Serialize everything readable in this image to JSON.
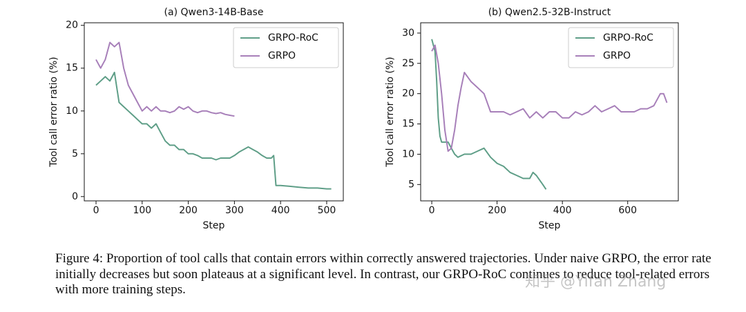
{
  "chart_data": [
    {
      "type": "line",
      "title": "(a) Qwen3-14B-Base",
      "x_label": "Step",
      "y_label": "Tool call error ratio (%)",
      "xlim": [
        -25.5,
        536
      ],
      "ylim": [
        -0.5,
        20.3
      ],
      "xticks": [
        0,
        100,
        200,
        300,
        400,
        500
      ],
      "yticks": [
        0,
        5,
        10,
        15,
        20
      ],
      "legend": "upper right",
      "series": [
        {
          "name": "GRPO-RoC",
          "color": "#5e9e87",
          "x": [
            0,
            10,
            20,
            30,
            40,
            50,
            60,
            70,
            80,
            90,
            100,
            110,
            120,
            130,
            140,
            150,
            160,
            170,
            180,
            190,
            200,
            210,
            220,
            230,
            240,
            250,
            260,
            270,
            280,
            290,
            300,
            310,
            320,
            330,
            340,
            350,
            360,
            370,
            380,
            385,
            390,
            400,
            420,
            440,
            460,
            480,
            500,
            510
          ],
          "values": [
            13,
            13.5,
            14,
            13.5,
            14.5,
            11,
            10.5,
            10,
            9.5,
            9,
            8.5,
            8.5,
            8,
            8.5,
            7.5,
            6.5,
            6,
            6,
            5.5,
            5.5,
            5,
            5,
            4.8,
            4.5,
            4.5,
            4.5,
            4.3,
            4.5,
            4.5,
            4.5,
            4.8,
            5.2,
            5.5,
            5.8,
            5.5,
            5.2,
            4.8,
            4.5,
            4.5,
            4.8,
            1.3,
            1.3,
            1.2,
            1.1,
            1.0,
            1.0,
            0.9,
            0.9
          ]
        },
        {
          "name": "GRPO",
          "color": "#a77fb9",
          "x": [
            0,
            10,
            20,
            30,
            40,
            50,
            60,
            70,
            80,
            90,
            100,
            110,
            120,
            130,
            140,
            150,
            160,
            170,
            180,
            190,
            200,
            210,
            220,
            230,
            240,
            250,
            260,
            270,
            280,
            290,
            300
          ],
          "values": [
            16,
            15,
            16,
            18,
            17.5,
            18,
            15,
            13,
            12,
            11,
            10,
            10.5,
            10,
            10.5,
            10,
            10,
            9.8,
            10,
            10.5,
            10.2,
            10.5,
            10,
            9.8,
            10,
            10,
            9.8,
            9.7,
            9.8,
            9.6,
            9.5,
            9.4
          ]
        }
      ]
    },
    {
      "type": "line",
      "title": "(b) Qwen2.5-32B-Instruct",
      "x_label": "Step",
      "y_label": "Tool call error ratio (%)",
      "xlim": [
        -34,
        755
      ],
      "ylim": [
        2.3,
        31.7
      ],
      "xticks": [
        0,
        200,
        400,
        600
      ],
      "yticks": [
        5,
        10,
        15,
        20,
        25,
        30
      ],
      "legend": "upper right",
      "series": [
        {
          "name": "GRPO-RoC",
          "color": "#5e9e87",
          "x": [
            0,
            5,
            10,
            15,
            20,
            25,
            30,
            40,
            50,
            60,
            70,
            80,
            100,
            120,
            140,
            160,
            180,
            200,
            220,
            240,
            260,
            280,
            300,
            310,
            320,
            340,
            350
          ],
          "values": [
            29,
            28,
            27,
            22,
            16,
            13,
            12,
            12,
            12,
            11,
            10,
            9.5,
            10,
            10,
            10.5,
            11,
            9.5,
            8.5,
            8,
            7,
            6.5,
            6,
            6,
            7,
            6.5,
            5,
            4.2
          ]
        },
        {
          "name": "GRPO",
          "color": "#a77fb9",
          "x": [
            0,
            10,
            20,
            30,
            40,
            50,
            60,
            70,
            80,
            90,
            100,
            120,
            140,
            160,
            180,
            200,
            220,
            240,
            260,
            280,
            300,
            320,
            340,
            360,
            380,
            400,
            420,
            440,
            460,
            480,
            500,
            520,
            540,
            560,
            580,
            600,
            620,
            640,
            660,
            680,
            700,
            710,
            720
          ],
          "values": [
            27,
            28,
            25,
            20,
            14,
            10.5,
            11,
            14,
            18,
            21,
            23.5,
            22,
            21,
            20,
            17,
            17,
            17,
            16.5,
            17,
            17.5,
            16,
            17,
            16,
            17,
            17,
            16,
            16,
            17,
            16.5,
            17,
            18,
            17,
            17.5,
            18,
            17,
            17,
            17,
            17.5,
            17.5,
            18,
            20,
            20,
            18.5
          ]
        }
      ]
    }
  ],
  "caption": "Figure 4: Proportion of tool calls that contain errors within correctly answered trajectories. Under naive GRPO, the error rate initially decreases but soon plateaus at a significant level. In contrast, our GRPO-RoC continues to reduce tool-related errors with more training steps.",
  "watermark": "知乎 @Yifan Zhang"
}
